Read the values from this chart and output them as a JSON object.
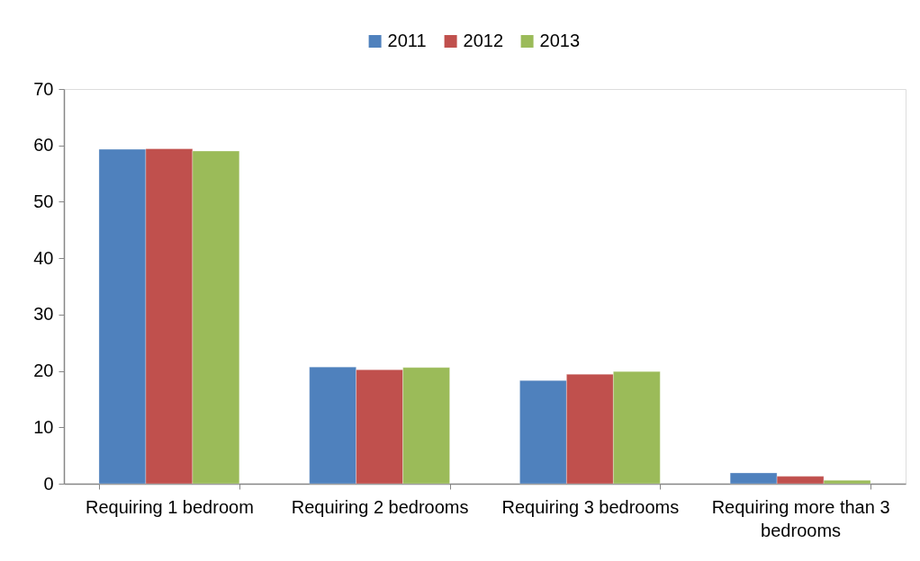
{
  "chart_data": {
    "type": "bar",
    "categories": [
      "Requiring 1 bedroom",
      "Requiring 2 bedrooms",
      "Requiring 3 bedrooms",
      "Requiring more than 3 bedrooms"
    ],
    "series": [
      {
        "name": "2011",
        "color": "#4f81bd",
        "values": [
          59.3,
          20.7,
          18.3,
          1.9
        ]
      },
      {
        "name": "2012",
        "color": "#c0504d",
        "values": [
          59.4,
          20.2,
          19.4,
          1.3
        ]
      },
      {
        "name": "2013",
        "color": "#9bbb59",
        "values": [
          59.0,
          20.6,
          19.9,
          0.6
        ]
      }
    ],
    "ylim": [
      0,
      70
    ],
    "yticks": [
      0,
      10,
      20,
      30,
      40,
      50,
      60,
      70
    ],
    "grid": false,
    "legend": "top"
  }
}
